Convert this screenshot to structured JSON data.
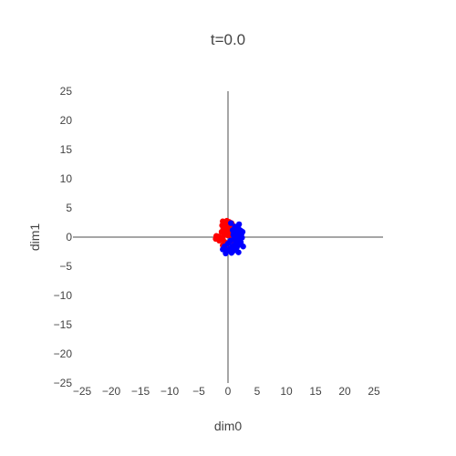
{
  "chart_data": {
    "type": "scatter",
    "title": "t=0.0",
    "xlabel": "dim0",
    "ylabel": "dim1",
    "xlim": [
      -25,
      25
    ],
    "ylim": [
      -25,
      25
    ],
    "xticks": [
      "−25",
      "−20",
      "−15",
      "−10",
      "−5",
      "0",
      "5",
      "10",
      "15",
      "20",
      "25"
    ],
    "yticks": [
      "−25",
      "−20",
      "−15",
      "−10",
      "−5",
      "0",
      "5",
      "10",
      "15",
      "20",
      "25"
    ],
    "xtick_values": [
      -25,
      -20,
      -15,
      -10,
      -5,
      0,
      5,
      10,
      15,
      20,
      25
    ],
    "ytick_values": [
      -25,
      -20,
      -15,
      -10,
      -5,
      0,
      5,
      10,
      15,
      20,
      25
    ],
    "grid": false,
    "zero_lines": true,
    "series": [
      {
        "color": "#ff0000",
        "points": [
          [
            -0.9,
            2.7
          ],
          [
            -0.6,
            2.5
          ],
          [
            -0.2,
            2.8
          ],
          [
            0.2,
            2.6
          ],
          [
            0.6,
            2.4
          ],
          [
            -1.0,
            2.0
          ],
          [
            -0.5,
            1.9
          ],
          [
            0.1,
            2.1
          ],
          [
            0.8,
            2.0
          ],
          [
            1.2,
            1.6
          ],
          [
            -0.8,
            1.4
          ],
          [
            -0.2,
            1.3
          ],
          [
            0.4,
            1.5
          ],
          [
            -1.1,
            0.9
          ],
          [
            -0.4,
            0.8
          ],
          [
            0.3,
            0.9
          ],
          [
            -0.7,
            0.4
          ],
          [
            0.0,
            0.3
          ],
          [
            -2.0,
            0.2
          ],
          [
            -1.6,
            0.1
          ],
          [
            -1.3,
            -0.2
          ],
          [
            -2.1,
            -0.3
          ],
          [
            -1.5,
            -0.6
          ],
          [
            -0.9,
            -0.2
          ],
          [
            -0.6,
            -0.8
          ],
          [
            -0.1,
            -1.0
          ],
          [
            0.5,
            -0.6
          ],
          [
            -0.9,
            -1.4
          ],
          [
            -0.3,
            -1.7
          ],
          [
            0.6,
            0.1
          ]
        ]
      },
      {
        "color": "#0000ff",
        "points": [
          [
            1.2,
            1.8
          ],
          [
            1.8,
            1.5
          ],
          [
            2.2,
            1.1
          ],
          [
            0.8,
            1.2
          ],
          [
            1.5,
            0.9
          ],
          [
            2.3,
            0.5
          ],
          [
            0.9,
            0.4
          ],
          [
            1.6,
            0.2
          ],
          [
            2.4,
            -0.1
          ],
          [
            1.0,
            -0.3
          ],
          [
            1.8,
            -0.5
          ],
          [
            2.2,
            -0.9
          ],
          [
            0.4,
            -0.6
          ],
          [
            1.3,
            -1.0
          ],
          [
            2.0,
            -1.3
          ],
          [
            0.0,
            -1.1
          ],
          [
            0.8,
            -1.5
          ],
          [
            1.5,
            -1.8
          ],
          [
            -0.6,
            -1.6
          ],
          [
            0.3,
            -2.0
          ],
          [
            1.0,
            -2.3
          ],
          [
            1.8,
            -2.6
          ],
          [
            -0.9,
            -2.1
          ],
          [
            -0.2,
            -2.4
          ],
          [
            0.6,
            -2.7
          ],
          [
            2.5,
            0.9
          ],
          [
            1.9,
            2.2
          ],
          [
            0.5,
            2.4
          ],
          [
            2.6,
            -1.6
          ],
          [
            -0.4,
            -2.8
          ]
        ]
      }
    ]
  }
}
